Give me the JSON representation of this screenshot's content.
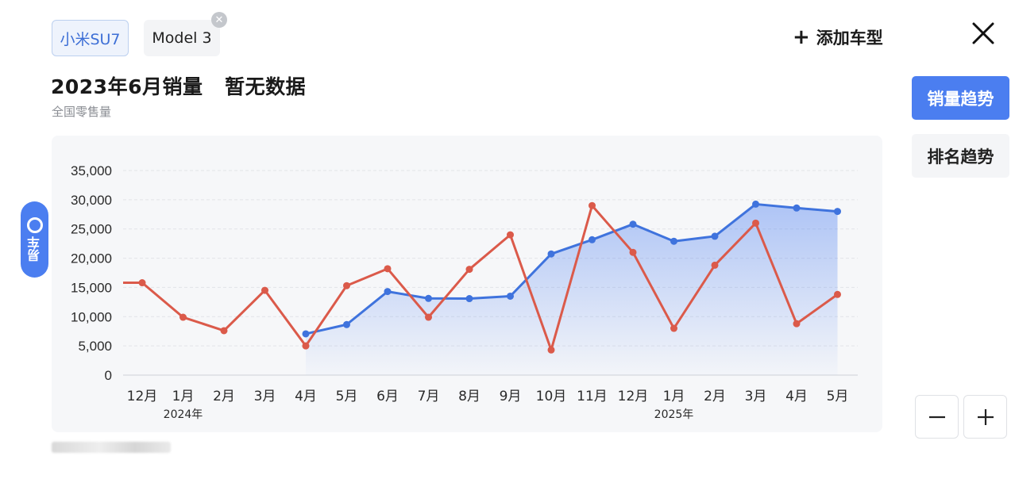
{
  "tabs": [
    {
      "label": "小米SU7",
      "active": true
    },
    {
      "label": "Model 3",
      "active": false
    }
  ],
  "tab_close_icon": "close-circle-icon",
  "add_model_label": "添加车型",
  "title": {
    "main": "2023年6月销量",
    "note": "暂无数据"
  },
  "subtitle": "全国零售量",
  "side_buttons": {
    "sales_trend": "销量趋势",
    "rank_trend": "排名趋势"
  },
  "watermark": {
    "text": "易车"
  },
  "zoom": {
    "minus_icon": "minus-icon",
    "plus_icon": "plus-icon"
  },
  "colors": {
    "accent": "#4b7ef0",
    "su7_line": "#3f73dd",
    "model3_line": "#db5a4a"
  },
  "chart_data": {
    "type": "line",
    "categories": [
      "12月",
      "1月",
      "2月",
      "3月",
      "4月",
      "5月",
      "6月",
      "7月",
      "8月",
      "9月",
      "10月",
      "11月",
      "12月",
      "1月",
      "2月",
      "3月",
      "4月",
      "5月"
    ],
    "year_labels": [
      {
        "index": 1,
        "label": "2024年"
      },
      {
        "index": 13,
        "label": "2025年"
      }
    ],
    "ylim": [
      0,
      35000
    ],
    "yticks": [
      0,
      5000,
      10000,
      15000,
      20000,
      25000,
      30000,
      35000
    ],
    "ytick_labels": [
      "0",
      "5,000",
      "10,000",
      "15,000",
      "20,000",
      "25,000",
      "30,000",
      "35,000"
    ],
    "grid": true,
    "series": [
      {
        "name": "小米SU7",
        "color": "#3f73dd",
        "area": true,
        "values": [
          null,
          null,
          null,
          null,
          7058,
          8646,
          14296,
          13120,
          13086,
          13500,
          20726,
          23156,
          25815,
          22897,
          23750,
          29243,
          28585,
          28000
        ]
      },
      {
        "name": "Model 3",
        "color": "#db5a4a",
        "area": false,
        "values": [
          15800,
          9900,
          7600,
          14500,
          5000,
          15300,
          18200,
          9900,
          18100,
          24000,
          4300,
          29000,
          21000,
          8000,
          18800,
          26000,
          8800,
          13800
        ]
      }
    ]
  }
}
